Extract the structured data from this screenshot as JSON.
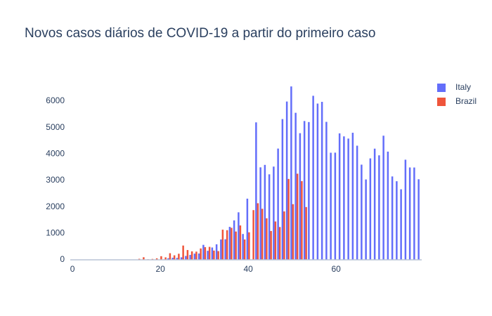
{
  "chart_data": {
    "type": "bar",
    "title": "Novos casos diários de COVID-19 a partir do primeiro caso",
    "x": [
      0,
      1,
      2,
      3,
      4,
      5,
      6,
      7,
      8,
      9,
      10,
      11,
      12,
      13,
      14,
      15,
      16,
      17,
      18,
      19,
      20,
      21,
      22,
      23,
      24,
      25,
      26,
      27,
      28,
      29,
      30,
      31,
      32,
      33,
      34,
      35,
      36,
      37,
      38,
      39,
      40,
      41,
      42,
      43,
      44,
      45,
      46,
      47,
      48,
      49,
      50,
      51,
      52,
      53,
      54,
      55,
      56,
      57,
      58,
      59,
      60,
      61,
      62,
      63,
      64,
      65,
      66,
      67,
      68,
      69,
      70,
      71,
      72,
      73,
      74,
      75,
      76,
      77,
      78,
      79
    ],
    "series": [
      {
        "name": "Italy",
        "color": "#636efa",
        "values": [
          3,
          0,
          0,
          0,
          0,
          0,
          1,
          0,
          0,
          0,
          0,
          0,
          0,
          0,
          0,
          0,
          0,
          0,
          0,
          0,
          0,
          17,
          59,
          78,
          72,
          94,
          147,
          185,
          234,
          239,
          566,
          342,
          466,
          587,
          769,
          778,
          1247,
          1492,
          1797,
          977,
          2313,
          0,
          5198,
          3497,
          3590,
          3233,
          3526,
          4207,
          5322,
          5986,
          6557,
          5560,
          4789,
          5249,
          5210,
          6203,
          5909,
          5974,
          5217,
          4050,
          4053,
          4782,
          4668,
          4585,
          4805,
          4316,
          3599,
          3039,
          3836,
          4204,
          3951,
          4694,
          4092,
          3153,
          2972,
          2667,
          3786,
          3493,
          3491,
          3047
        ]
      },
      {
        "name": "Brazil",
        "color": "#ef553b",
        "values": [
          1,
          0,
          0,
          1,
          0,
          0,
          0,
          1,
          5,
          5,
          6,
          6,
          0,
          12,
          0,
          38,
          98,
          21,
          34,
          57,
          137,
          93,
          250,
          170,
          230,
          540,
          370,
          320,
          310,
          430,
          480,
          490,
          350,
          330,
          1140,
          1120,
          1210,
          1070,
          1300,
          770,
          1040,
          1880,
          2140,
          1930,
          1570,
          1090,
          1450,
          1240,
          1830,
          3058,
          2105,
          3257,
          2976,
          1996,
          null,
          null,
          null,
          null,
          null,
          null,
          null,
          null,
          null,
          null,
          null,
          null,
          null,
          null,
          null,
          null,
          null,
          null,
          null,
          null,
          null,
          null,
          null,
          null,
          null,
          null
        ]
      }
    ],
    "xlim": [
      -0.5,
      79.5
    ],
    "xticks": [
      0,
      20,
      40,
      60
    ],
    "ylim": [
      0,
      7170
    ],
    "yticks": [
      0,
      1000,
      2000,
      3000,
      4000,
      5000,
      6000
    ],
    "legend": "top-right"
  }
}
